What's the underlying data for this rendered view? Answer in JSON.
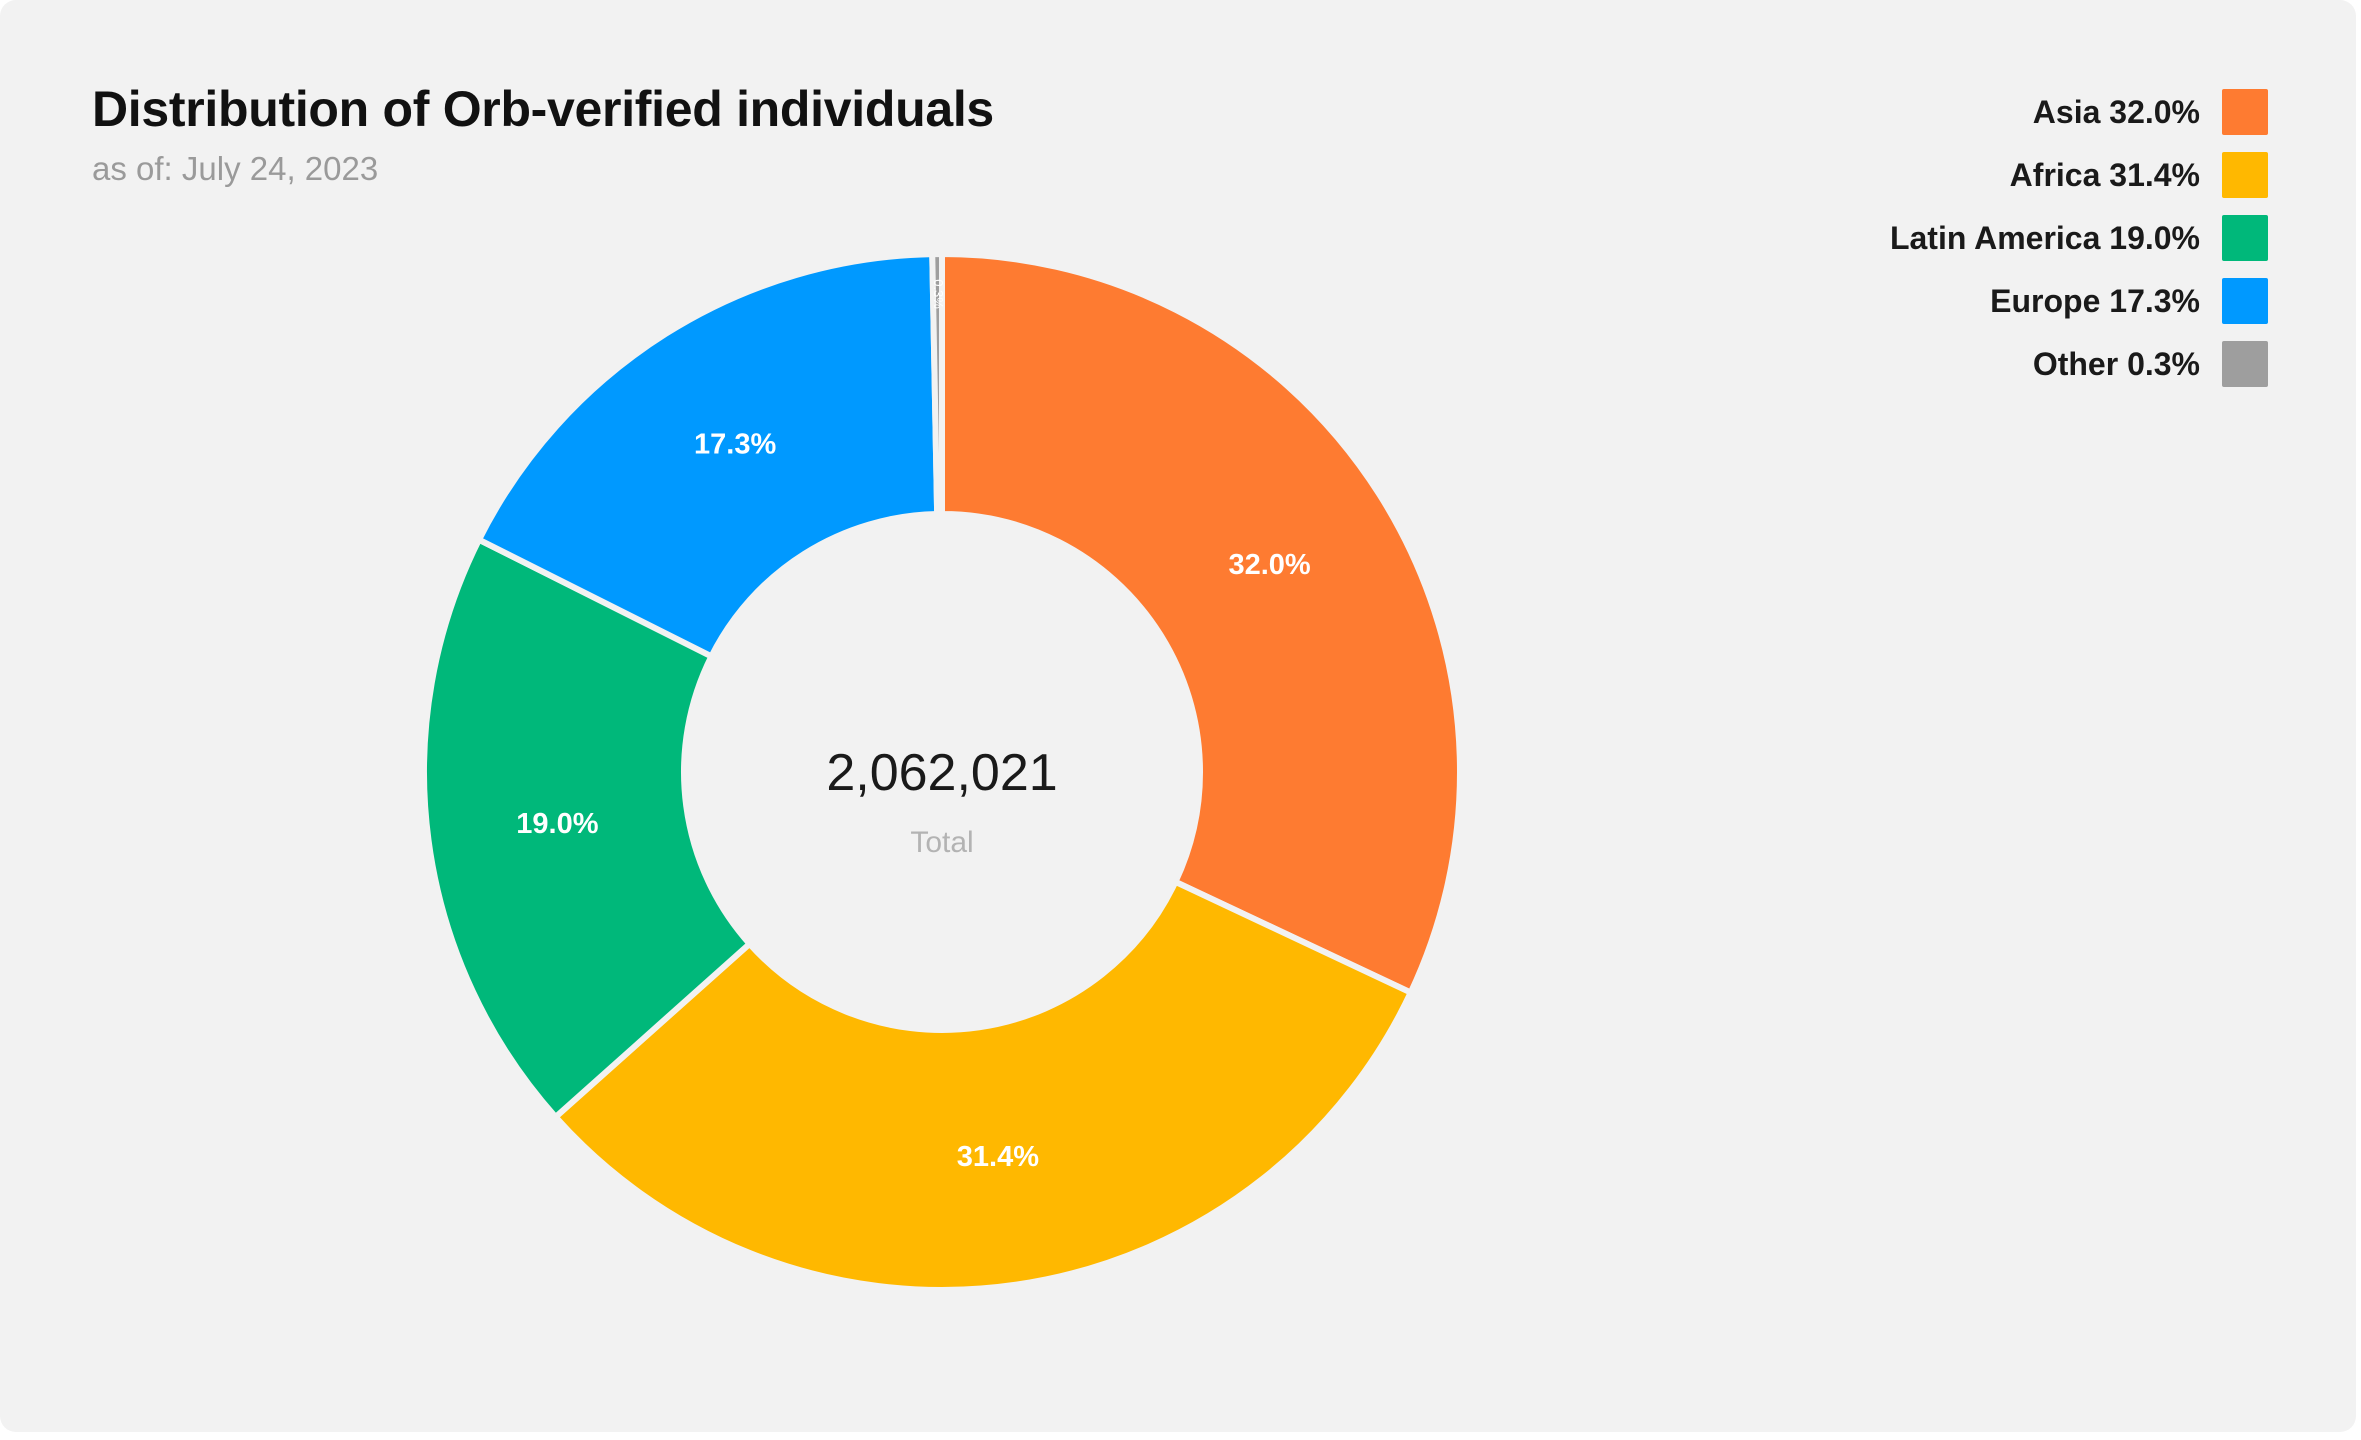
{
  "chart_data": {
    "type": "pie",
    "style": "donut",
    "title": "Distribution of Orb-verified individuals",
    "subtitle": "as of: July 24, 2023",
    "center_value": "2,062,021",
    "center_label": "Total",
    "legend_position": "top-right",
    "slices": [
      {
        "label": "Asia",
        "value": 32.0,
        "display": "32.0%",
        "legend": "Asia 32.0%",
        "color": "#fe7b31"
      },
      {
        "label": "Africa",
        "value": 31.4,
        "display": "31.4%",
        "legend": "Africa 31.4%",
        "color": "#ffb800"
      },
      {
        "label": "Latin America",
        "value": 19.0,
        "display": "19.0%",
        "legend": "Latin America 19.0%",
        "color": "#00b87a"
      },
      {
        "label": "Europe",
        "value": 17.3,
        "display": "17.3%",
        "legend": "Europe 17.3%",
        "color": "#0099ff"
      },
      {
        "label": "Other",
        "value": 0.3,
        "display": "0.3%",
        "legend": "Other 0.3%",
        "color": "#9e9e9e"
      }
    ]
  }
}
